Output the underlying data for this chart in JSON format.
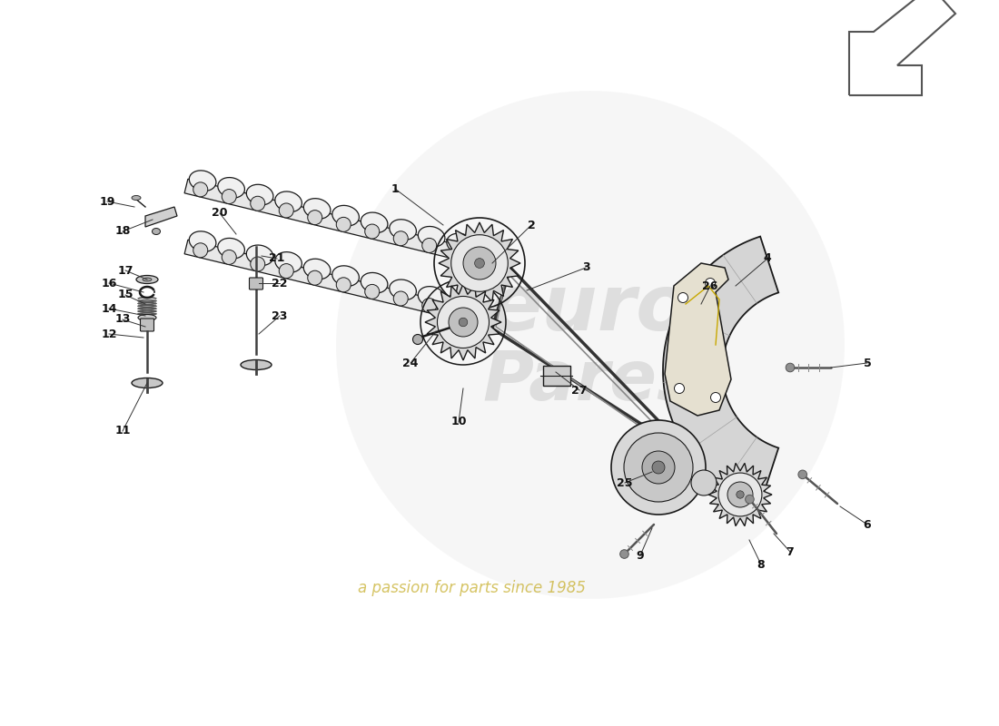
{
  "bg_color": "#ffffff",
  "lc": "#1a1a1a",
  "gray_light": "#d8d8d8",
  "gray_mid": "#b0b0b0",
  "gray_dark": "#505050",
  "wm_color": "#e0e0e0",
  "wm_sub_color": "#c8b030",
  "parts_info": [
    [
      1,
      4.35,
      5.92,
      4.88,
      5.52
    ],
    [
      2,
      5.85,
      5.52,
      5.42,
      5.1
    ],
    [
      3,
      6.45,
      5.05,
      5.8,
      4.8
    ],
    [
      4,
      8.45,
      5.15,
      8.1,
      4.85
    ],
    [
      5,
      9.55,
      4.0,
      9.15,
      3.95
    ],
    [
      6,
      9.55,
      2.22,
      9.25,
      2.42
    ],
    [
      7,
      8.7,
      1.92,
      8.52,
      2.12
    ],
    [
      8,
      8.38,
      1.78,
      8.25,
      2.05
    ],
    [
      9,
      7.05,
      1.88,
      7.18,
      2.18
    ],
    [
      10,
      5.05,
      3.35,
      5.1,
      3.72
    ],
    [
      11,
      1.35,
      3.25,
      1.62,
      3.78
    ],
    [
      12,
      1.2,
      4.32,
      1.58,
      4.28
    ],
    [
      13,
      1.35,
      4.48,
      1.6,
      4.4
    ],
    [
      14,
      1.2,
      4.6,
      1.6,
      4.52
    ],
    [
      15,
      1.38,
      4.75,
      1.6,
      4.65
    ],
    [
      16,
      1.2,
      4.88,
      1.58,
      4.78
    ],
    [
      17,
      1.38,
      5.02,
      1.62,
      4.92
    ],
    [
      18,
      1.35,
      5.45,
      1.68,
      5.58
    ],
    [
      19,
      1.18,
      5.78,
      1.48,
      5.72
    ],
    [
      20,
      2.42,
      5.65,
      2.6,
      5.42
    ],
    [
      21,
      3.05,
      5.15,
      2.88,
      5.18
    ],
    [
      22,
      3.08,
      4.88,
      2.85,
      4.88
    ],
    [
      23,
      3.08,
      4.52,
      2.85,
      4.32
    ],
    [
      24,
      4.52,
      4.0,
      4.8,
      4.35
    ],
    [
      25,
      6.88,
      2.68,
      7.18,
      2.8
    ],
    [
      26,
      7.82,
      4.85,
      7.72,
      4.65
    ],
    [
      27,
      6.38,
      3.7,
      6.12,
      3.9
    ]
  ]
}
